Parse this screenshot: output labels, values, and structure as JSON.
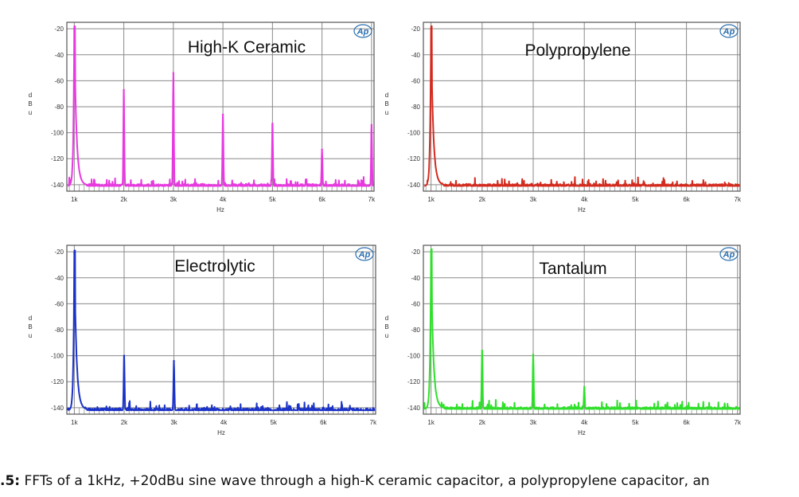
{
  "chart_data": [
    {
      "type": "line",
      "title": "High-K Ceramic",
      "color": "#e838e0",
      "ylabel": "dBu",
      "xlabel": "Hz",
      "xlim": [
        850,
        7050
      ],
      "ylim": [
        -145,
        -15
      ],
      "x_ticks": [
        "1k",
        "2k",
        "3k",
        "4k",
        "5k",
        "6k",
        "7k"
      ],
      "y_ticks": [
        "-20",
        "-40",
        "-60",
        "-80",
        "-100",
        "-120",
        "-140"
      ],
      "logo": "AP",
      "peaks": [
        {
          "x": 1000,
          "y": -20
        },
        {
          "x": 2000,
          "y": -67
        },
        {
          "x": 3000,
          "y": -54
        },
        {
          "x": 4000,
          "y": -86
        },
        {
          "x": 5000,
          "y": -93
        },
        {
          "x": 6000,
          "y": -113
        },
        {
          "x": 7000,
          "y": -94
        }
      ],
      "noise_floor": -141
    },
    {
      "type": "line",
      "title": "Polypropylene",
      "color": "#d42a1e",
      "ylabel": "dBu",
      "xlabel": "Hz",
      "xlim": [
        850,
        7050
      ],
      "ylim": [
        -145,
        -15
      ],
      "x_ticks": [
        "1k",
        "2k",
        "3k",
        "4k",
        "5k",
        "6k",
        "7k"
      ],
      "y_ticks": [
        "-20",
        "-40",
        "-60",
        "-80",
        "-100",
        "-120",
        "-140"
      ],
      "logo": "AP",
      "peaks": [
        {
          "x": 1000,
          "y": -20
        }
      ],
      "noise_floor": -141
    },
    {
      "type": "line",
      "title": "Electrolytic",
      "color": "#1a32c8",
      "ylabel": "dBu",
      "xlabel": "Hz",
      "xlim": [
        850,
        7050
      ],
      "ylim": [
        -145,
        -15
      ],
      "x_ticks": [
        "1k",
        "2k",
        "3k",
        "4k",
        "5k",
        "6k",
        "7k"
      ],
      "y_ticks": [
        "-20",
        "-40",
        "-60",
        "-80",
        "-100",
        "-120",
        "-140"
      ],
      "logo": "AP",
      "peaks": [
        {
          "x": 1000,
          "y": -21
        },
        {
          "x": 2000,
          "y": -100
        },
        {
          "x": 3000,
          "y": -104
        }
      ],
      "noise_floor": -142
    },
    {
      "type": "line",
      "title": "Tantalum",
      "color": "#2ee02a",
      "ylabel": "dBu",
      "xlabel": "Hz",
      "xlim": [
        850,
        7050
      ],
      "ylim": [
        -145,
        -15
      ],
      "x_ticks": [
        "1k",
        "2k",
        "3k",
        "4k",
        "5k",
        "6k",
        "7k"
      ],
      "y_ticks": [
        "-20",
        "-40",
        "-60",
        "-80",
        "-100",
        "-120",
        "-140"
      ],
      "logo": "AP",
      "peaks": [
        {
          "x": 1000,
          "y": -20
        },
        {
          "x": 2000,
          "y": -96
        },
        {
          "x": 3000,
          "y": -99
        },
        {
          "x": 4000,
          "y": -124
        }
      ],
      "noise_floor": -141
    }
  ],
  "caption": {
    "label": ".5:",
    "text": " FFTs of a 1kHz, +20dBu sine wave through a high-K ceramic capacitor, a polypropylene capacitor, an"
  }
}
